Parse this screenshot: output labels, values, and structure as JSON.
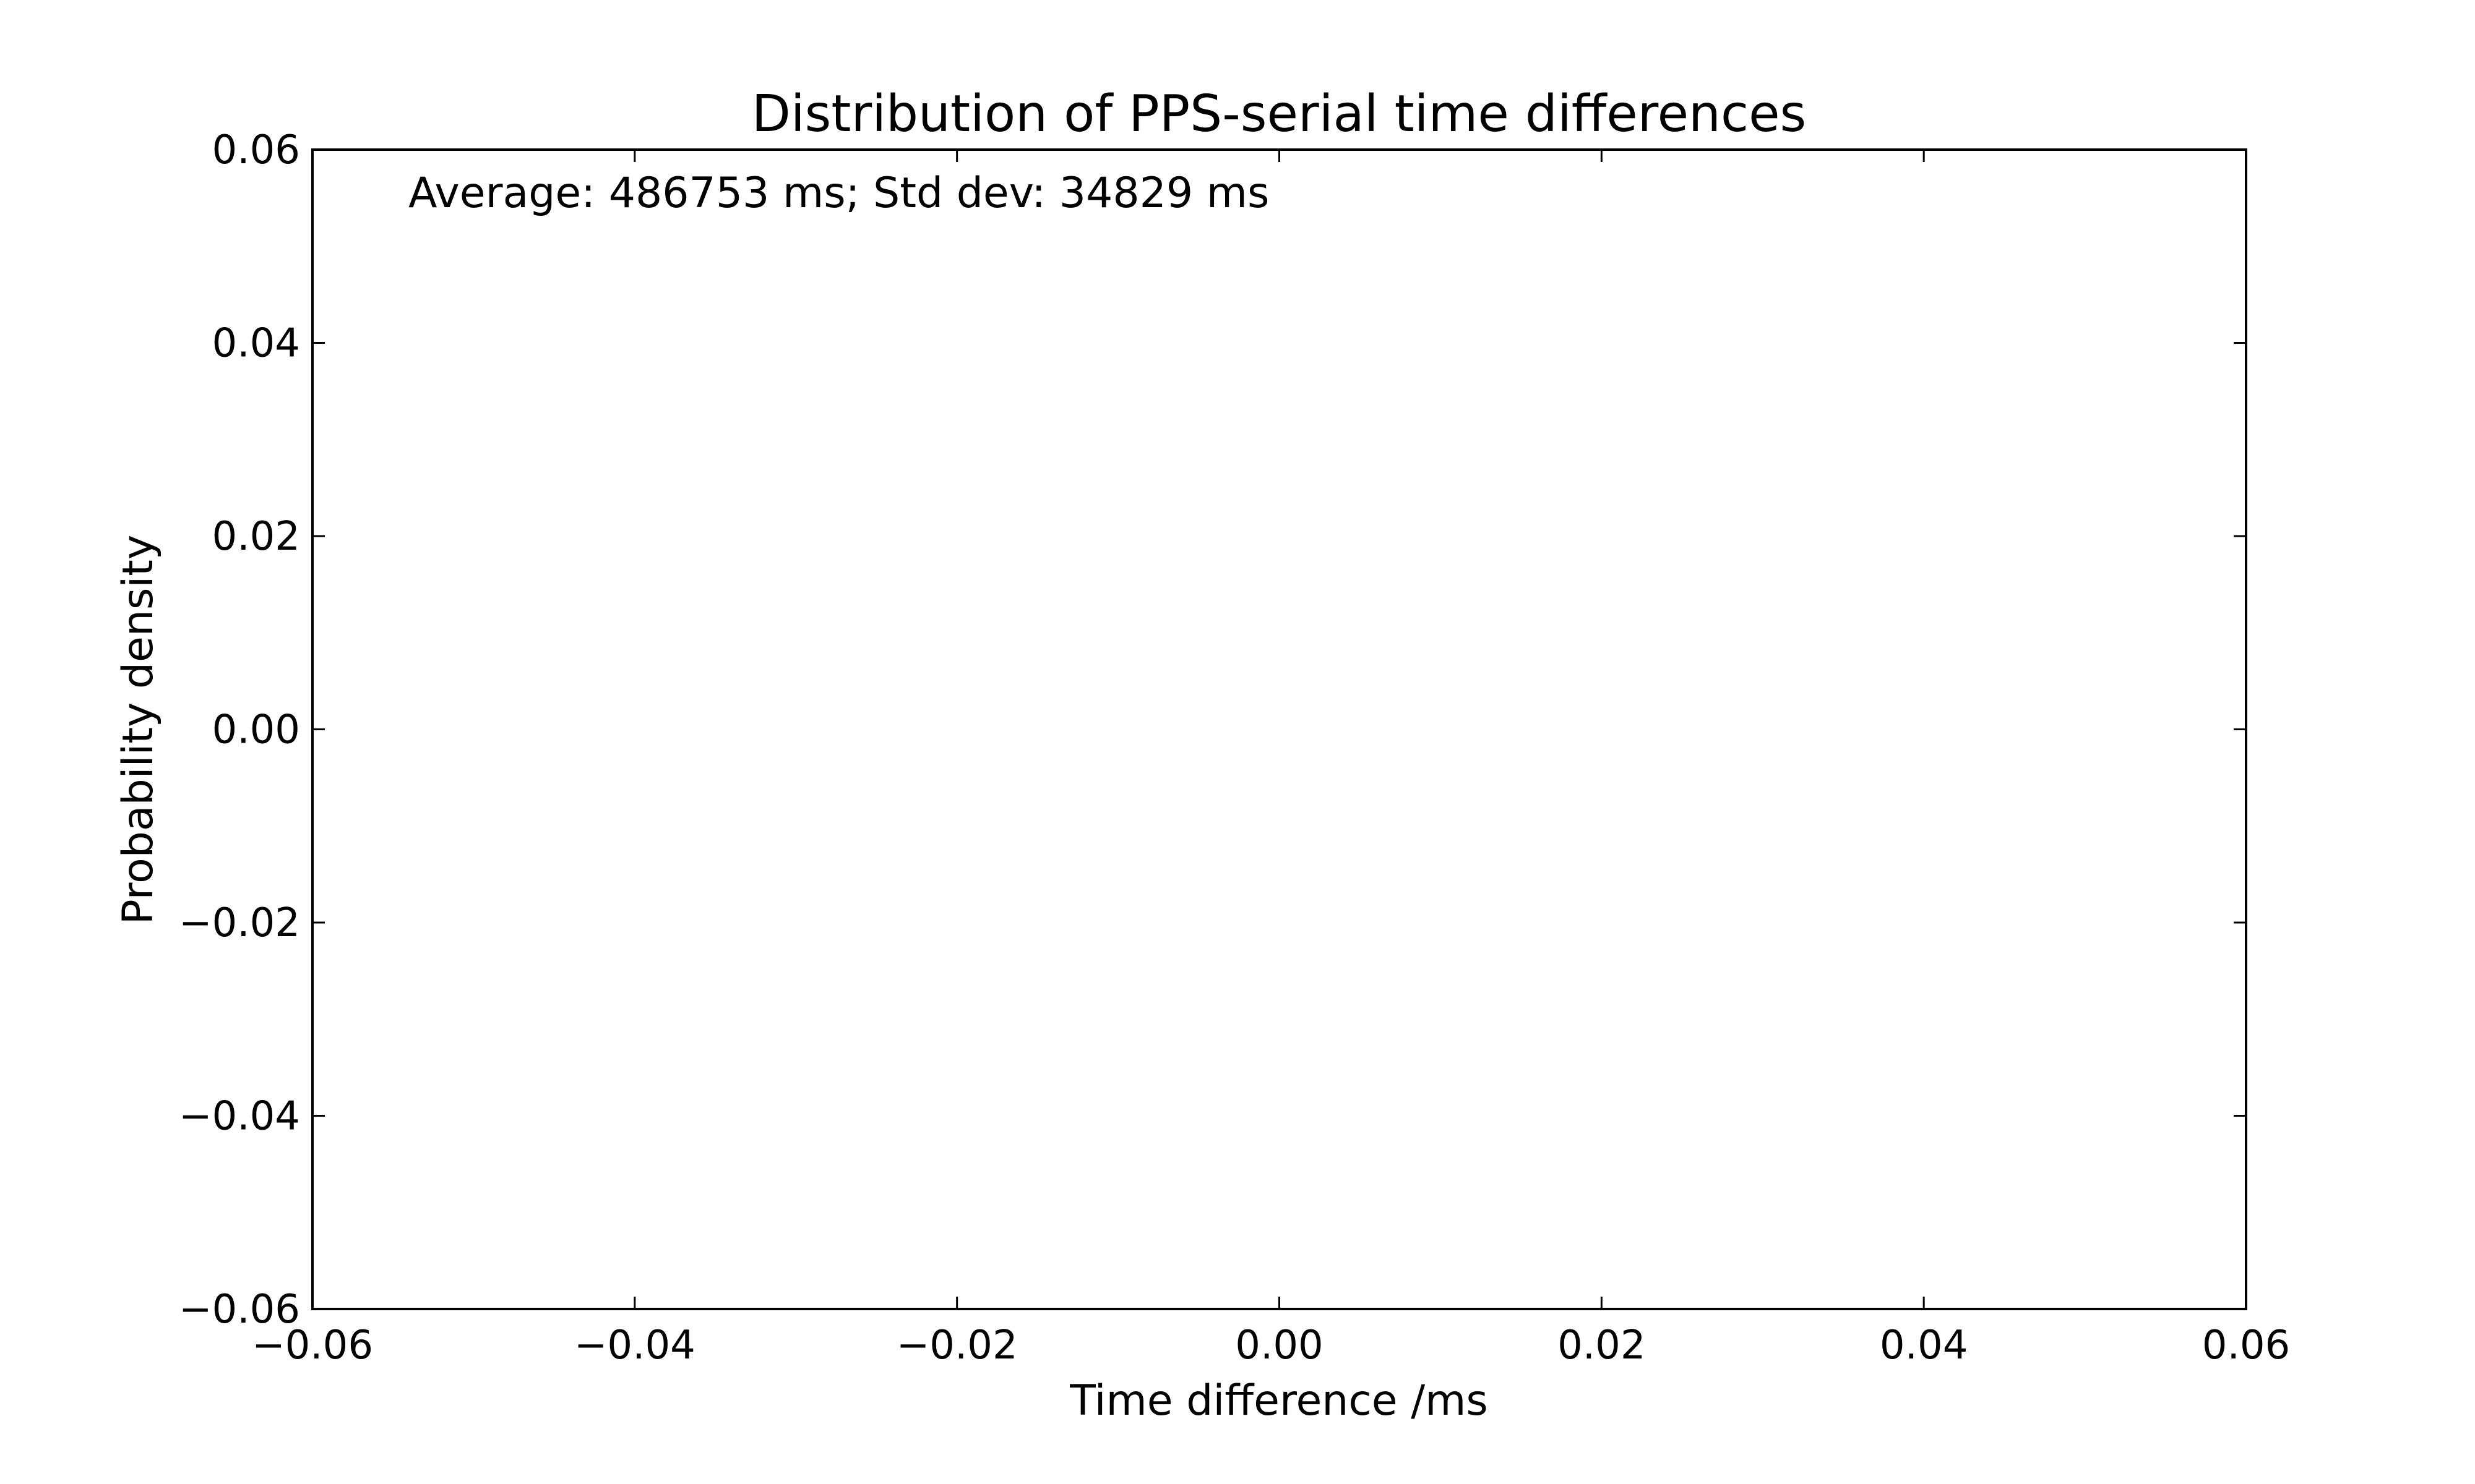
{
  "chart_data": {
    "type": "histogram",
    "title": "Distribution of PPS-serial time differences",
    "xlabel": "Time difference /ms",
    "ylabel": "Probability density",
    "annotation": "Average: 486753 ms;  Std dev: 34829 ms",
    "xlim": [
      -0.06,
      0.06
    ],
    "ylim": [
      -0.06,
      0.06
    ],
    "xticks": [
      -0.06,
      -0.04,
      -0.02,
      0.0,
      0.02,
      0.04,
      0.06
    ],
    "yticks": [
      -0.06,
      -0.04,
      -0.02,
      0.0,
      0.02,
      0.04,
      0.06
    ],
    "xtick_labels": [
      "−0.06",
      "−0.04",
      "−0.02",
      "0.00",
      "0.02",
      "0.04",
      "0.06"
    ],
    "ytick_labels": [
      "−0.06",
      "−0.04",
      "−0.02",
      "0.00",
      "0.02",
      "0.04",
      "0.06"
    ],
    "series": [],
    "grid": false,
    "legend": false
  }
}
